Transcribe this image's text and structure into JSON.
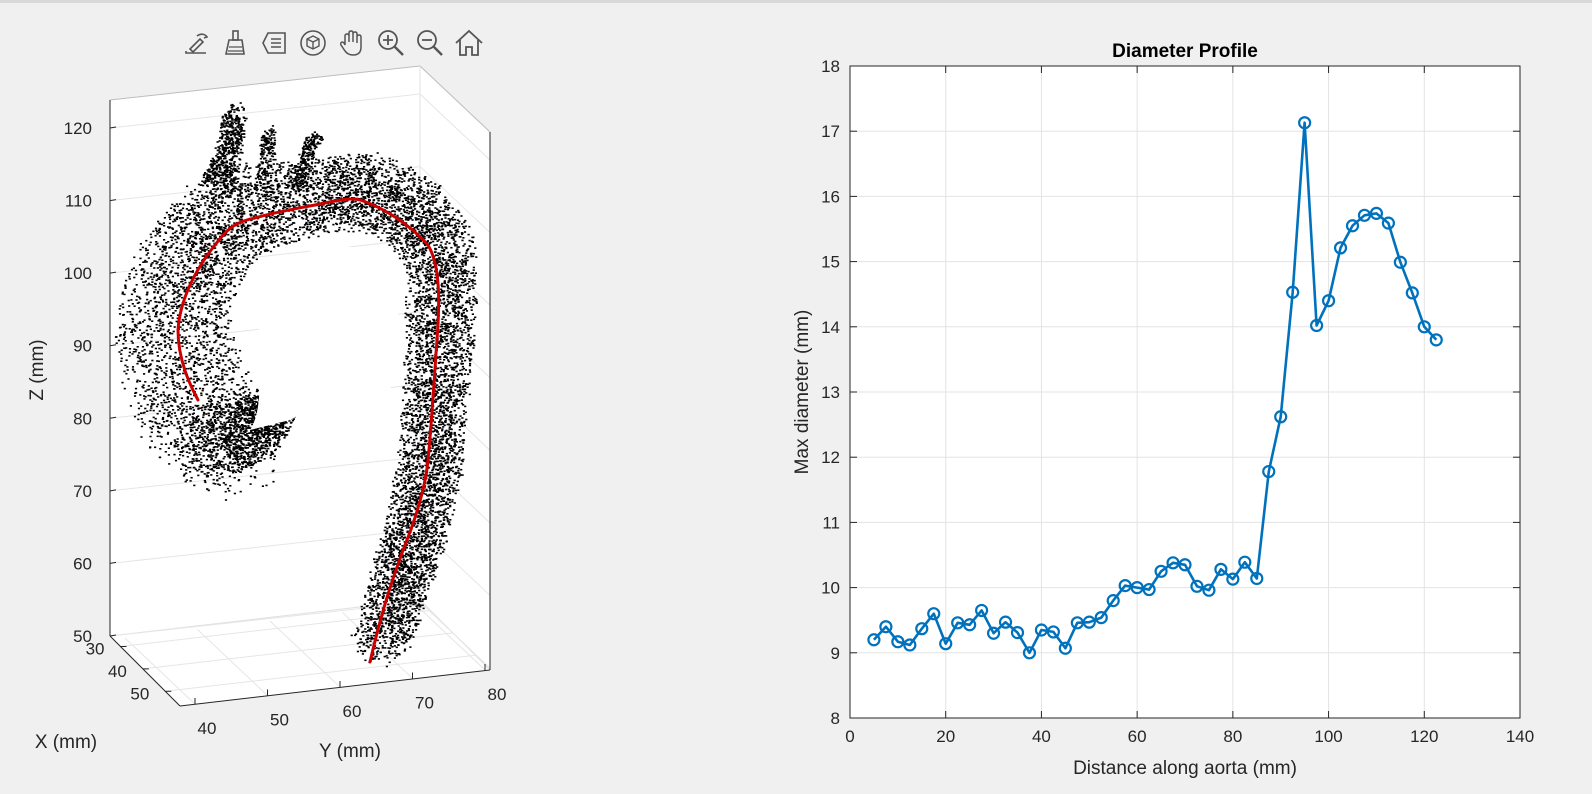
{
  "toolbar": {
    "buttons": [
      {
        "name": "edit-plot-icon"
      },
      {
        "name": "brush-icon"
      },
      {
        "name": "data-tips-icon"
      },
      {
        "name": "rotate-3d-icon"
      },
      {
        "name": "pan-icon"
      },
      {
        "name": "zoom-in-icon"
      },
      {
        "name": "zoom-out-icon"
      },
      {
        "name": "home-icon"
      }
    ]
  },
  "plot3d": {
    "xlabel": "X (mm)",
    "ylabel": "Y (mm)",
    "zlabel": "Z (mm)",
    "z_ticks": [
      "50",
      "60",
      "70",
      "80",
      "90",
      "100",
      "110",
      "120"
    ],
    "y_ticks": [
      "40",
      "50",
      "60",
      "70",
      "80"
    ],
    "x_ticks": [
      "30",
      "40",
      "50"
    ],
    "point_color": "#000000",
    "centerline_color": "#cc0000"
  },
  "chart_data": {
    "type": "line",
    "title": "Diameter Profile",
    "xlabel": "Distance along aorta (mm)",
    "ylabel": "Max diameter (mm)",
    "xlim": [
      0,
      140
    ],
    "ylim": [
      8,
      18
    ],
    "x_ticks": [
      0,
      20,
      40,
      60,
      80,
      100,
      120,
      140
    ],
    "y_ticks": [
      8,
      9,
      10,
      11,
      12,
      13,
      14,
      15,
      16,
      17,
      18
    ],
    "grid": true,
    "marker": "circle",
    "series_color": "#0072bd",
    "x": [
      5,
      7.5,
      10,
      12.5,
      15,
      17.5,
      20,
      22.5,
      25,
      27.5,
      30,
      32.5,
      35,
      37.5,
      40,
      42.5,
      45,
      47.5,
      50,
      52.5,
      55,
      57.5,
      60,
      62.5,
      65,
      67.5,
      70,
      72.5,
      75,
      77.5,
      80,
      82.5,
      85,
      87.5,
      90,
      92.5,
      95,
      97.5,
      100,
      102.5,
      105,
      107.5,
      110,
      112.5,
      115,
      117.5,
      120,
      122.5
    ],
    "y": [
      9.2,
      9.4,
      9.17,
      9.12,
      9.37,
      9.6,
      9.14,
      9.46,
      9.43,
      9.65,
      9.3,
      9.47,
      9.31,
      9.0,
      9.35,
      9.32,
      9.07,
      9.46,
      9.47,
      9.54,
      9.8,
      10.03,
      10.0,
      9.97,
      10.25,
      10.38,
      10.35,
      10.02,
      9.96,
      10.28,
      10.13,
      10.39,
      10.14,
      11.78,
      12.62,
      14.53,
      17.13,
      14.02,
      14.4,
      15.21,
      15.55,
      15.71,
      15.74,
      15.59,
      14.99,
      14.52,
      14.0,
      13.8
    ]
  }
}
